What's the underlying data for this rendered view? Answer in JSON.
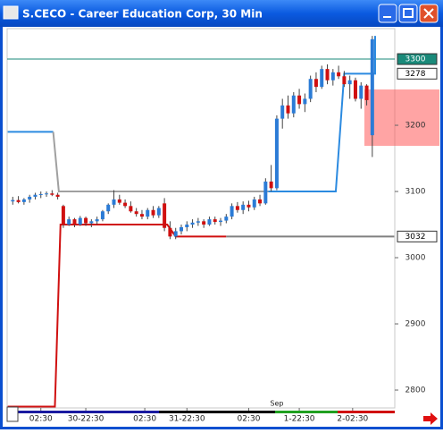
{
  "window_title": "S.CECO - Career Education Corp, 30 Min",
  "chart_data": {
    "type": "candlestick",
    "up_color": "#2b7bd6",
    "down_color": "#d01010",
    "xlim": [
      -1,
      68
    ],
    "ylim": [
      2773,
      3346
    ],
    "yticks": [
      2800,
      2900,
      3000,
      3100,
      3200
    ],
    "markers": [
      {
        "value": 3300,
        "fill": "#1a8a7a",
        "line": true
      },
      {
        "value": 3278,
        "fill": "#ffffff",
        "line": false
      },
      {
        "value": 3032,
        "fill": "#ffffff",
        "line": false
      }
    ],
    "xticks": [
      {
        "value": 5,
        "label": "02:30"
      },
      {
        "value": 13,
        "label": "30-22:30"
      },
      {
        "value": 23.5,
        "label": "02:30"
      },
      {
        "value": 31,
        "label": "31-22:30"
      },
      {
        "value": 42,
        "label": "02:30"
      },
      {
        "value": 51,
        "label": "1-22:30"
      },
      {
        "value": 60.5,
        "label": "2-02:30"
      }
    ],
    "annotation": {
      "x": 47,
      "text": "Sep"
    },
    "open": [
      3085,
      3087,
      3084,
      3088,
      3092,
      3095,
      3096,
      3097,
      3095,
      3078,
      3050,
      3058,
      3050,
      3060,
      3052,
      3055,
      3058,
      3070,
      3080,
      3088,
      3083,
      3078,
      3070,
      3066,
      3062,
      3072,
      3064,
      3082,
      3045,
      3032,
      3040,
      3046,
      3050,
      3053,
      3055,
      3050,
      3058,
      3054,
      3056,
      3062,
      3078,
      3072,
      3080,
      3076,
      3088,
      3082,
      3115,
      3105,
      3210,
      3230,
      3218,
      3245,
      3232,
      3240,
      3270,
      3258,
      3285,
      3268,
      3280,
      3274,
      3262,
      3268,
      3240,
      3260,
      3185
    ],
    "high": [
      3092,
      3093,
      3090,
      3095,
      3098,
      3100,
      3100,
      3102,
      3098,
      3080,
      3062,
      3060,
      3063,
      3062,
      3058,
      3062,
      3072,
      3082,
      3102,
      3095,
      3088,
      3085,
      3075,
      3072,
      3075,
      3078,
      3078,
      3090,
      3055,
      3045,
      3050,
      3055,
      3058,
      3060,
      3058,
      3062,
      3062,
      3060,
      3066,
      3082,
      3084,
      3085,
      3086,
      3092,
      3095,
      3120,
      3140,
      3215,
      3240,
      3245,
      3250,
      3255,
      3248,
      3275,
      3280,
      3290,
      3292,
      3285,
      3290,
      3282,
      3275,
      3272,
      3265,
      3262,
      3335
    ],
    "low": [
      3080,
      3082,
      3080,
      3083,
      3088,
      3090,
      3092,
      3093,
      3088,
      3045,
      3048,
      3046,
      3048,
      3048,
      3046,
      3050,
      3055,
      3066,
      3075,
      3080,
      3075,
      3068,
      3062,
      3058,
      3058,
      3060,
      3060,
      3040,
      3028,
      3028,
      3035,
      3040,
      3045,
      3048,
      3045,
      3048,
      3050,
      3048,
      3052,
      3058,
      3068,
      3066,
      3070,
      3072,
      3078,
      3080,
      3100,
      3102,
      3195,
      3210,
      3212,
      3225,
      3220,
      3235,
      3250,
      3255,
      3262,
      3260,
      3270,
      3258,
      3240,
      3236,
      3225,
      3230,
      3152
    ],
    "close": [
      3087,
      3084,
      3088,
      3092,
      3095,
      3096,
      3097,
      3095,
      3092,
      3050,
      3058,
      3050,
      3060,
      3052,
      3055,
      3058,
      3070,
      3080,
      3088,
      3083,
      3078,
      3070,
      3066,
      3062,
      3072,
      3064,
      3075,
      3045,
      3032,
      3040,
      3046,
      3050,
      3053,
      3055,
      3050,
      3058,
      3054,
      3056,
      3062,
      3078,
      3072,
      3080,
      3076,
      3088,
      3082,
      3115,
      3105,
      3210,
      3230,
      3218,
      3245,
      3232,
      3240,
      3270,
      3258,
      3285,
      3268,
      3280,
      3274,
      3262,
      3268,
      3240,
      3260,
      3238,
      3330
    ],
    "overlays": [
      {
        "color": "#2b8ae0",
        "x": [
          -0.9,
          7.2
        ],
        "values": [
          3190,
          3190
        ]
      },
      {
        "color": "#a0a0a0",
        "x": [
          7.2,
          8.2,
          45.5
        ],
        "values": [
          3190,
          3100,
          3100
        ]
      },
      {
        "color": "#2b8ae0",
        "x": [
          45.5,
          57.5,
          59,
          64.5,
          64.5
        ],
        "values": [
          3100,
          3100,
          3278,
          3278,
          3335
        ]
      },
      {
        "color": "#d01010",
        "x": [
          -0.9,
          7.5,
          8.5,
          27.5,
          29,
          38
        ],
        "values": [
          2775,
          2775,
          3050,
          3050,
          3032,
          3032
        ]
      },
      {
        "color": "#808080",
        "x": [
          38,
          67.9
        ],
        "values": [
          3032,
          3032
        ]
      }
    ]
  }
}
